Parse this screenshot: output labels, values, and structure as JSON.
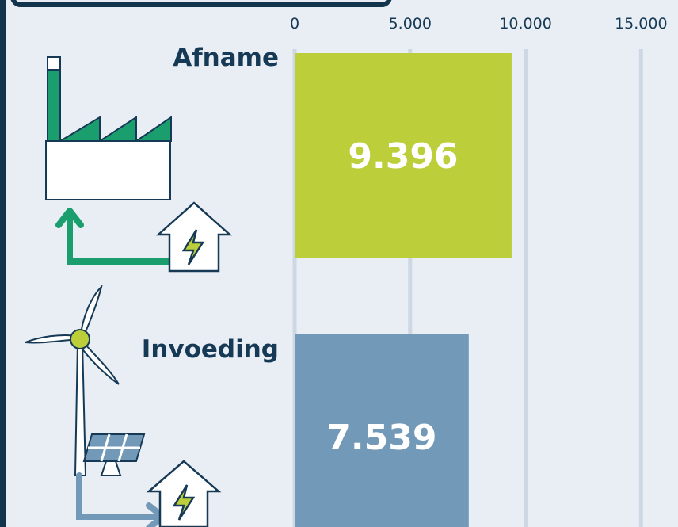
{
  "chart_data": {
    "type": "bar",
    "orientation": "horizontal",
    "categories": [
      "Afname",
      "Invoeding"
    ],
    "values": [
      9396,
      7539
    ],
    "value_labels": [
      "9.396",
      "7.539"
    ],
    "colors": [
      "#bccf3b",
      "#7399b8"
    ],
    "xlim": [
      0,
      16600
    ],
    "xticks": [
      0,
      {
        "value": 5000,
        "label": "5.000"
      },
      {
        "value": 10000,
        "label": "10.000"
      },
      {
        "value": 15000,
        "label": "15.000"
      }
    ],
    "grid": true
  }
}
